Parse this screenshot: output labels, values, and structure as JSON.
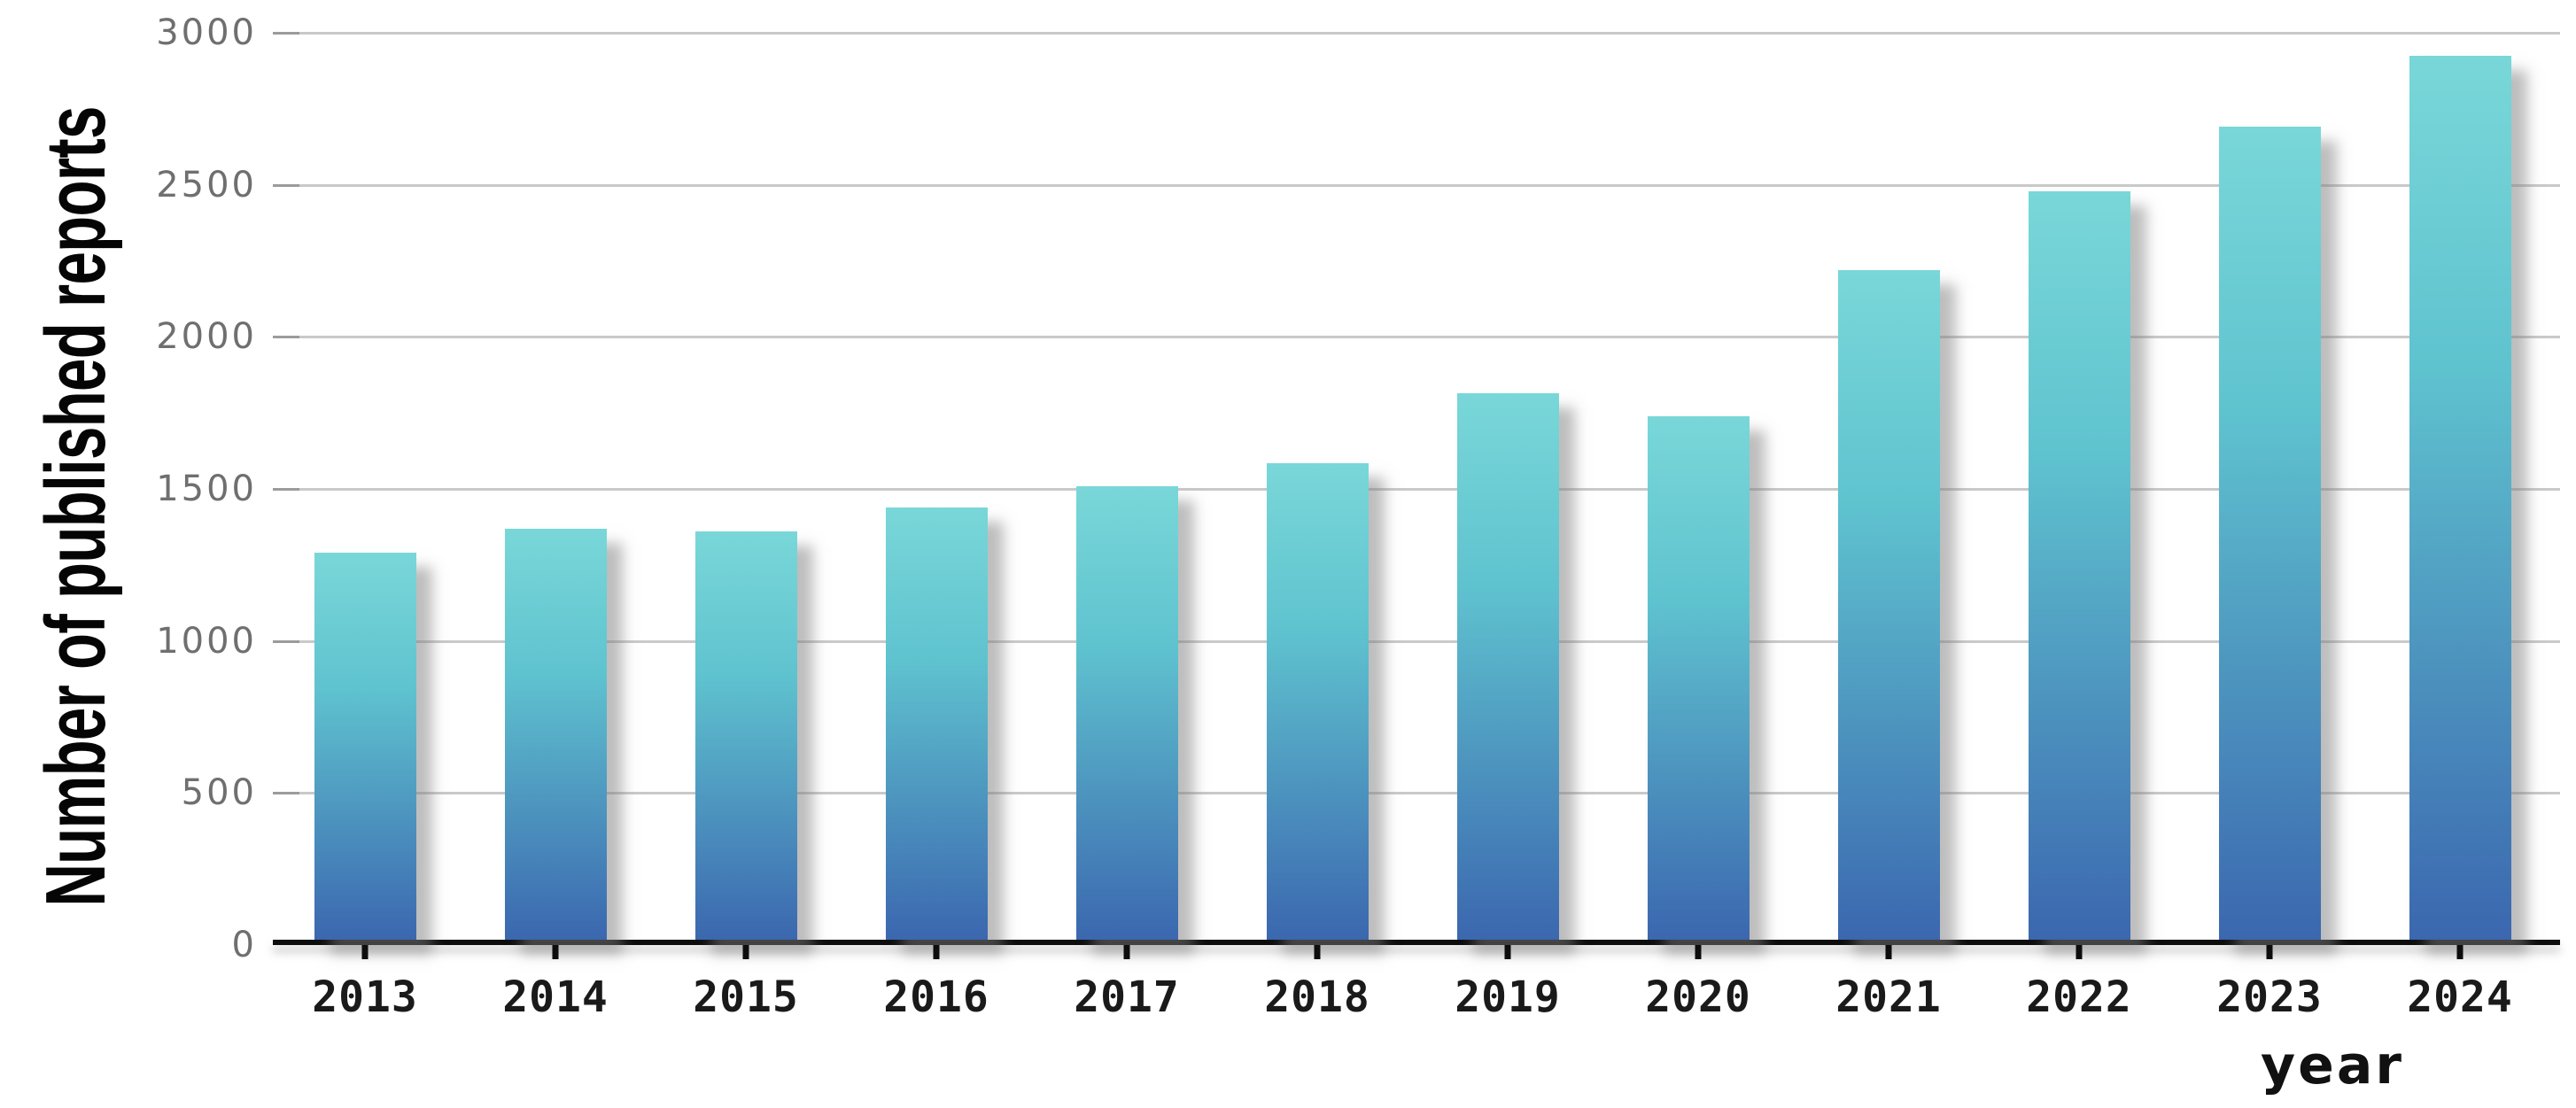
{
  "chart_data": {
    "type": "bar",
    "title": "",
    "xlabel": "year",
    "ylabel": "Number of published reports",
    "categories": [
      "2013",
      "2014",
      "2015",
      "2016",
      "2017",
      "2018",
      "2019",
      "2020",
      "2021",
      "2022",
      "2023",
      "2024"
    ],
    "values": [
      1290,
      1370,
      1360,
      1440,
      1510,
      1585,
      1815,
      1740,
      2220,
      2480,
      2690,
      2925
    ],
    "yticks": [
      0,
      500,
      1000,
      1500,
      2000,
      2500,
      3000
    ],
    "ylim": [
      0,
      3000
    ],
    "grid": "horizontal",
    "legend": "none",
    "colors": {
      "bar_gradient_top": "#79d7d8",
      "bar_gradient_mid": "#5fc3cf",
      "bar_gradient_bottom": "#3b67af",
      "gridline": "#c9c9c9",
      "axis": "#0d0d0d",
      "ytick_text": "#6f6f6f",
      "xtick_text": "#1a1a1a"
    }
  }
}
